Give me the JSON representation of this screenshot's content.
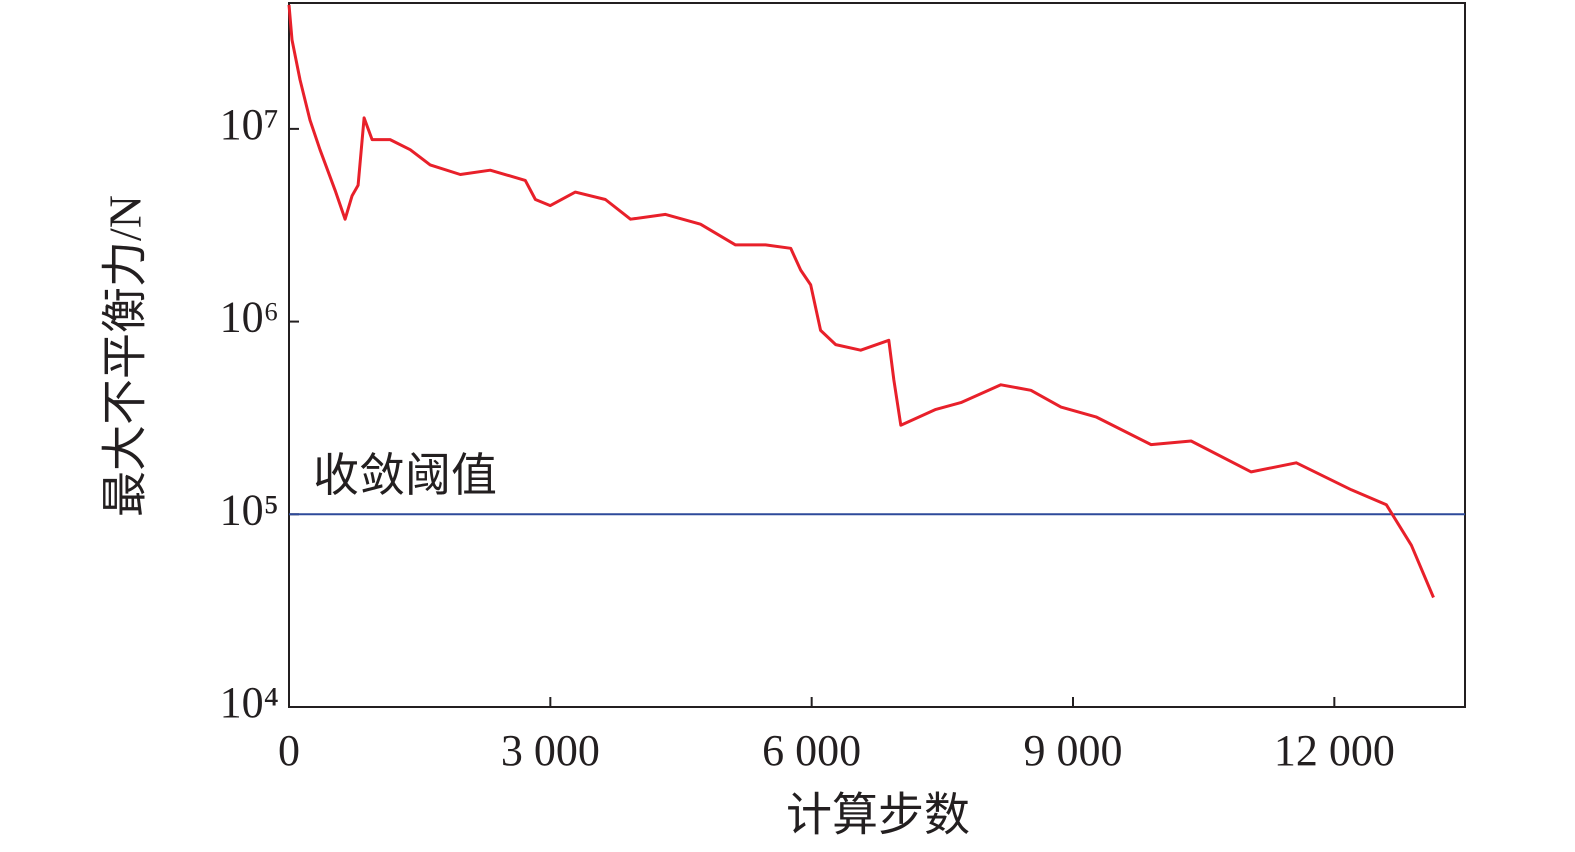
{
  "chart_data": {
    "type": "line",
    "x_label": "计算步数",
    "y_label": "最大不平衡力/N",
    "xlim": [
      0,
      13500
    ],
    "xticks": [
      0,
      {
        "value": 3000,
        "label": "3 000"
      },
      {
        "value": 6000,
        "label": "6 000"
      },
      {
        "value": 9000,
        "label": "9 000"
      },
      {
        "value": 12000,
        "label": "12 000"
      }
    ],
    "ylim": [
      10000,
      45000000
    ],
    "yscale": "log",
    "yticks": [
      {
        "value": 10000,
        "label": "10⁴"
      },
      {
        "value": 100000,
        "label": "10⁵"
      },
      {
        "value": 1000000,
        "label": "10⁶"
      },
      {
        "value": 10000000,
        "label": "10⁷"
      }
    ],
    "threshold": {
      "value": 100000,
      "label": "收敛阈值",
      "color": "#2e4a9a"
    },
    "series": [
      {
        "color": "#e8202a",
        "x": [
          0,
          34,
          126,
          241,
          356,
          529,
          644,
          724,
          793,
          862,
          954,
          1161,
          1391,
          1621,
          1966,
          2310,
          2713,
          2828,
          3000,
          3287,
          3632,
          3920,
          4322,
          4724,
          5126,
          5471,
          5759,
          5874,
          5989,
          6103,
          6276,
          6563,
          6885,
          6943,
          7023,
          7425,
          7713,
          8172,
          8517,
          8862,
          9264,
          9897,
          10356,
          11046,
          11563,
          12195,
          12598,
          12885,
          13138
        ],
        "values": [
          44000000,
          29000000,
          18000000,
          11100000,
          7800000,
          4800000,
          3400000,
          4500000,
          5100000,
          11400000,
          8800000,
          8800000,
          7800000,
          6500000,
          5800000,
          6100000,
          5400000,
          4300000,
          4000000,
          4700000,
          4300000,
          3400000,
          3600000,
          3200000,
          2500000,
          2500000,
          2400000,
          1850000,
          1550000,
          900000,
          760000,
          710000,
          800000,
          500000,
          290000,
          350000,
          380000,
          470000,
          440000,
          360000,
          320000,
          230000,
          240000,
          166000,
          185000,
          134000,
          112000,
          69000,
          37000
        ]
      }
    ]
  }
}
